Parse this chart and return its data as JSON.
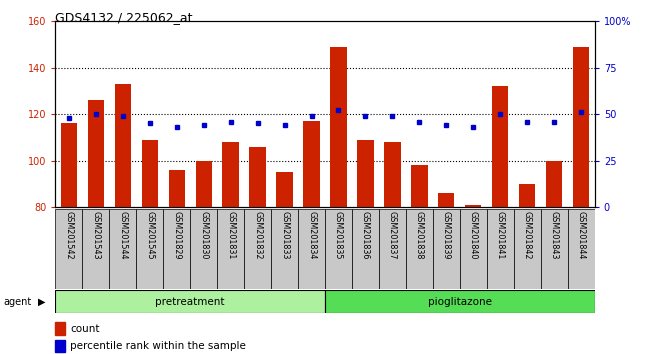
{
  "title": "GDS4132 / 225062_at",
  "samples": [
    "GSM201542",
    "GSM201543",
    "GSM201544",
    "GSM201545",
    "GSM201829",
    "GSM201830",
    "GSM201831",
    "GSM201832",
    "GSM201833",
    "GSM201834",
    "GSM201835",
    "GSM201836",
    "GSM201837",
    "GSM201838",
    "GSM201839",
    "GSM201840",
    "GSM201841",
    "GSM201842",
    "GSM201843",
    "GSM201844"
  ],
  "counts": [
    116,
    126,
    133,
    109,
    96,
    100,
    108,
    106,
    95,
    117,
    149,
    109,
    108,
    98,
    86,
    81,
    132,
    90,
    100,
    149
  ],
  "percentile_ranks": [
    48,
    50,
    49,
    45,
    43,
    44,
    46,
    45,
    44,
    49,
    52,
    49,
    49,
    46,
    44,
    43,
    50,
    46,
    46,
    51
  ],
  "pretreatment_count": 10,
  "pioglitazone_count": 10,
  "ylim_left": [
    80,
    160
  ],
  "ylim_right": [
    0,
    100
  ],
  "yticks_left": [
    80,
    100,
    120,
    140,
    160
  ],
  "yticks_right": [
    0,
    25,
    50,
    75,
    100
  ],
  "ytick_labels_right": [
    "0",
    "25",
    "50",
    "75",
    "100%"
  ],
  "bar_color": "#cc2200",
  "dot_color": "#0000cc",
  "pretreatment_color": "#adf0a0",
  "pioglitazone_color": "#55dd55",
  "grid_color": "#000000",
  "tick_bg": "#c8c8c8",
  "agent_label_color": "#000000"
}
